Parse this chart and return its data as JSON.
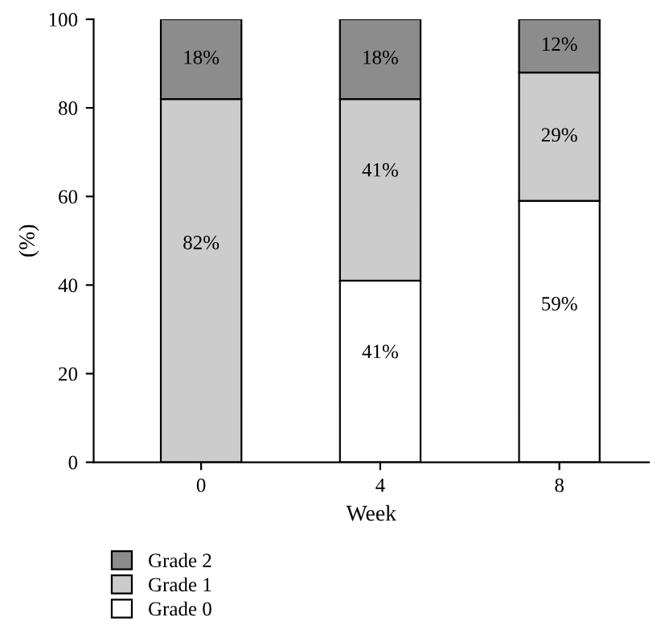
{
  "chart_data": {
    "type": "bar",
    "stacked": true,
    "xlabel": "Week",
    "ylabel": "(%)",
    "categories": [
      "0",
      "4",
      "8"
    ],
    "series": [
      {
        "name": "Grade 0",
        "color": "#ffffff",
        "values": [
          0,
          41,
          59
        ],
        "value_labels": [
          null,
          "41%",
          "59%"
        ]
      },
      {
        "name": "Grade 1",
        "color": "#cccccc",
        "values": [
          82,
          41,
          29
        ],
        "value_labels": [
          "82%",
          "41%",
          "29%"
        ]
      },
      {
        "name": "Grade 2",
        "color": "#8c8c8c",
        "values": [
          18,
          18,
          12
        ],
        "value_labels": [
          "18%",
          "18%",
          "12%"
        ]
      }
    ],
    "ylim": [
      0,
      100
    ],
    "yticks": [
      0,
      20,
      40,
      60,
      80,
      100
    ],
    "grid": false,
    "legend": "bottom"
  }
}
